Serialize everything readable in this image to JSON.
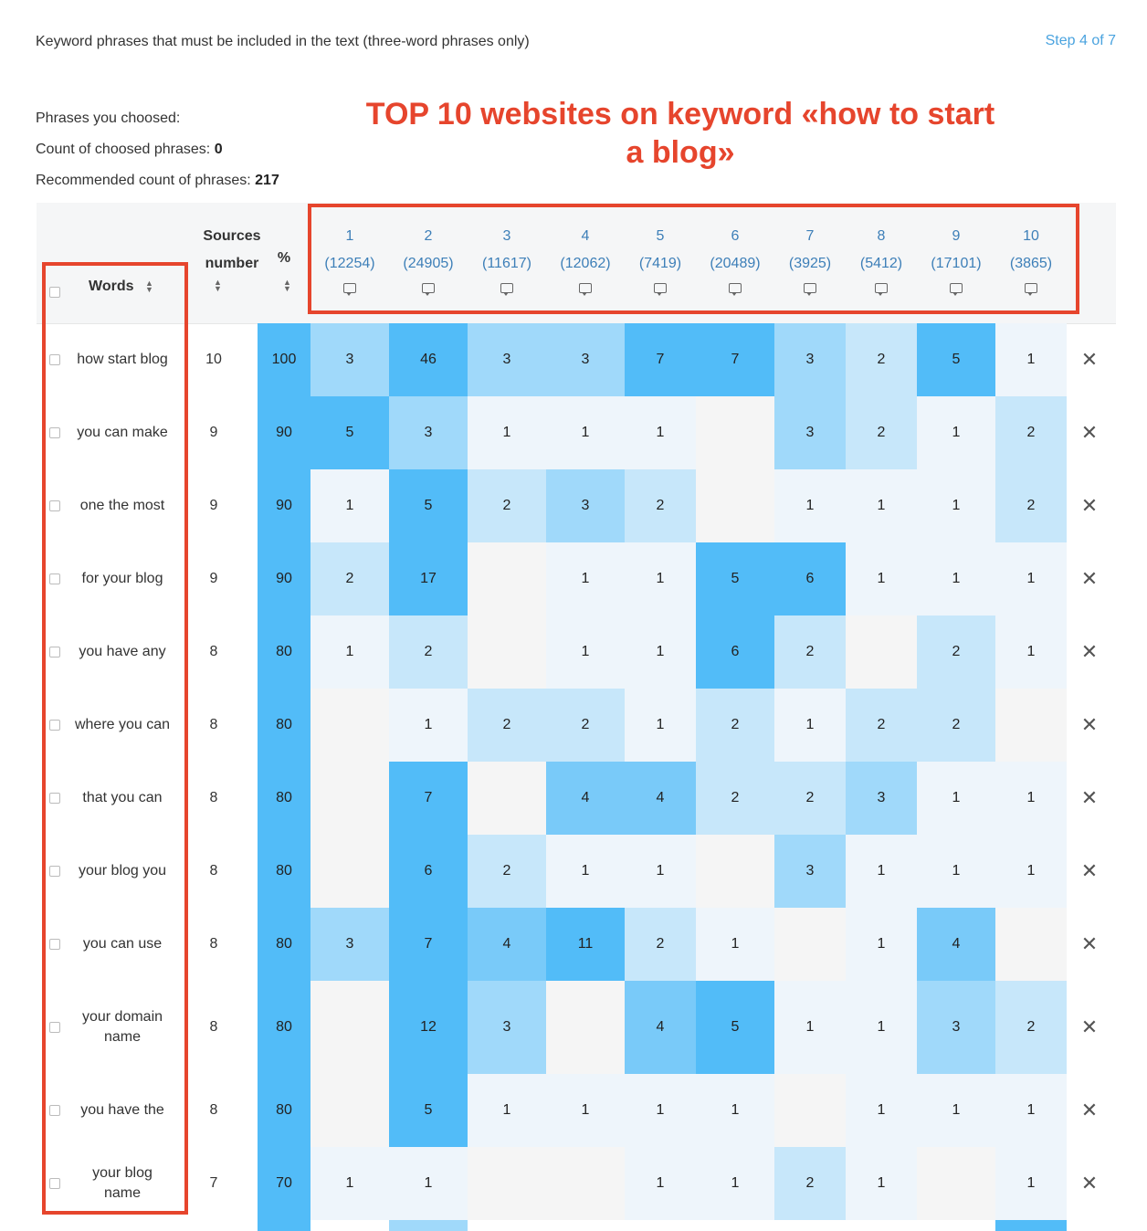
{
  "intro": "Keyword phrases that must be included in the text (three-word phrases only)",
  "step": "Step 4 of 7",
  "banner": "TOP 10 websites on keyword «how to start a blog»",
  "stats": {
    "phrases_label": "Phrases you choosed:",
    "count_label": "Count of choosed phrases:",
    "count_value": "0",
    "recommended_label": "Recommended count of phrases:",
    "recommended_value": "217"
  },
  "header": {
    "words": "Words",
    "sources_line1": "Sources",
    "sources_line2": "number",
    "percent": "%"
  },
  "sites": [
    {
      "num": "1",
      "words": "(12254)"
    },
    {
      "num": "2",
      "words": "(24905)"
    },
    {
      "num": "3",
      "words": "(11617)"
    },
    {
      "num": "4",
      "words": "(12062)"
    },
    {
      "num": "5",
      "words": "(7419)"
    },
    {
      "num": "6",
      "words": "(20489)"
    },
    {
      "num": "7",
      "words": "(3925)"
    },
    {
      "num": "8",
      "words": "(5412)"
    },
    {
      "num": "9",
      "words": "(17101)"
    },
    {
      "num": "10",
      "words": "(3865)"
    }
  ],
  "rows": [
    {
      "phrase": "how start blog",
      "sources": "10",
      "percent": "100",
      "counts": [
        3,
        46,
        3,
        3,
        7,
        7,
        3,
        2,
        5,
        1
      ]
    },
    {
      "phrase": "you can make",
      "sources": "9",
      "percent": "90",
      "counts": [
        5,
        3,
        1,
        1,
        1,
        null,
        3,
        2,
        1,
        2
      ]
    },
    {
      "phrase": "one the most",
      "sources": "9",
      "percent": "90",
      "counts": [
        1,
        5,
        2,
        3,
        2,
        null,
        1,
        1,
        1,
        2
      ]
    },
    {
      "phrase": "for your blog",
      "sources": "9",
      "percent": "90",
      "counts": [
        2,
        17,
        null,
        1,
        1,
        5,
        6,
        1,
        1,
        1
      ]
    },
    {
      "phrase": "you have any",
      "sources": "8",
      "percent": "80",
      "counts": [
        1,
        2,
        null,
        1,
        1,
        6,
        2,
        null,
        2,
        1
      ]
    },
    {
      "phrase": "where you can",
      "sources": "8",
      "percent": "80",
      "counts": [
        null,
        1,
        2,
        2,
        1,
        2,
        1,
        2,
        2,
        null
      ]
    },
    {
      "phrase": "that you can",
      "sources": "8",
      "percent": "80",
      "counts": [
        null,
        7,
        null,
        4,
        4,
        2,
        2,
        3,
        1,
        1
      ]
    },
    {
      "phrase": "your blog you",
      "sources": "8",
      "percent": "80",
      "counts": [
        null,
        6,
        2,
        1,
        1,
        null,
        3,
        1,
        1,
        1
      ]
    },
    {
      "phrase": "you can use",
      "sources": "8",
      "percent": "80",
      "counts": [
        3,
        7,
        4,
        11,
        2,
        1,
        null,
        1,
        4,
        null
      ]
    },
    {
      "phrase": "your domain name",
      "sources": "8",
      "percent": "80",
      "counts": [
        null,
        12,
        3,
        null,
        4,
        5,
        1,
        1,
        3,
        2
      ]
    },
    {
      "phrase": "you have the",
      "sources": "8",
      "percent": "80",
      "counts": [
        null,
        5,
        1,
        1,
        1,
        1,
        null,
        1,
        1,
        1
      ]
    },
    {
      "phrase": "your blog name",
      "sources": "7",
      "percent": "70",
      "counts": [
        1,
        1,
        null,
        null,
        1,
        1,
        2,
        1,
        null,
        1
      ]
    }
  ],
  "colors": {
    "accent": "#e6452d",
    "link": "#3d7fb8",
    "step": "#4aa3df",
    "heat_max": "#52bcf8",
    "heat_min": "#eef5fb",
    "empty": "#f5f5f5"
  }
}
